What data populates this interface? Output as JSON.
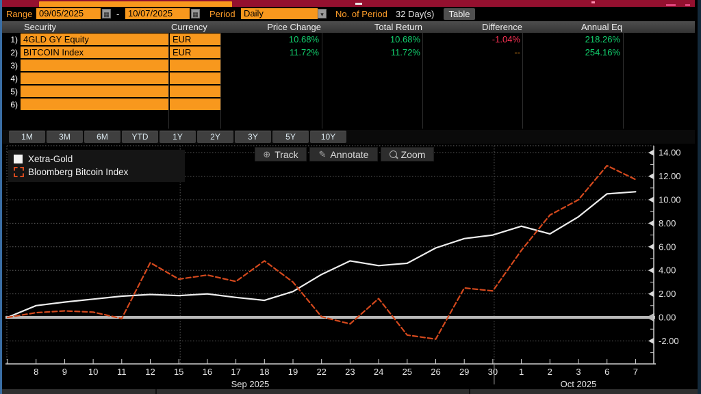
{
  "toolbar": {
    "range_label": "Range",
    "range_start": "09/05/2025",
    "range_end": "10/07/2025",
    "dash": "-",
    "period_label": "Period",
    "period_value": "Daily",
    "no_of_period_label": "No. of Period",
    "no_of_period_value": "32 Day(s)",
    "table_button": "Table"
  },
  "table": {
    "headers": [
      "Security",
      "Currency",
      "Price Change",
      "Total Return",
      "Difference",
      "Annual Eq"
    ],
    "rows": [
      {
        "num": "1)",
        "security": "4GLD GY Equity",
        "currency": "EUR",
        "price_change": "10.68%",
        "total_return": "10.68%",
        "difference": "-1.04%",
        "annual_eq": "218.26%"
      },
      {
        "num": "2)",
        "security": "BITCOIN Index",
        "currency": "EUR",
        "price_change": "11.72%",
        "total_return": "11.72%",
        "difference": "--",
        "annual_eq": "254.16%"
      },
      {
        "num": "3)",
        "security": "",
        "currency": ""
      },
      {
        "num": "4)",
        "security": "",
        "currency": ""
      },
      {
        "num": "5)",
        "security": "",
        "currency": ""
      },
      {
        "num": "6)",
        "security": "",
        "currency": ""
      }
    ]
  },
  "period_buttons": [
    "1M",
    "3M",
    "6M",
    "YTD",
    "1Y",
    "2Y",
    "3Y",
    "5Y",
    "10Y"
  ],
  "chart": {
    "buttons": [
      {
        "label": "Track",
        "icon": "crosshair-icon"
      },
      {
        "label": "Annotate",
        "icon": "pencil-icon"
      },
      {
        "label": "Zoom",
        "icon": "magnifier-icon"
      }
    ]
  },
  "chart_data": {
    "type": "line",
    "x_tick_labels": [
      "8",
      "9",
      "10",
      "11",
      "12",
      "15",
      "16",
      "17",
      "18",
      "19",
      "22",
      "23",
      "24",
      "25",
      "26",
      "29",
      "30",
      "1",
      "2",
      "3",
      "6",
      "7"
    ],
    "dates": [
      "09/05",
      "09/08",
      "09/09",
      "09/10",
      "09/11",
      "09/12",
      "09/15",
      "09/16",
      "09/17",
      "09/18",
      "09/19",
      "09/22",
      "09/23",
      "09/24",
      "09/25",
      "09/26",
      "09/29",
      "09/30",
      "10/01",
      "10/02",
      "10/03",
      "10/06",
      "10/07"
    ],
    "series": [
      {
        "name": "Xetra-Gold",
        "color": "#eeeeee",
        "style": "solid",
        "values": [
          0,
          1.0,
          1.3,
          1.55,
          1.8,
          1.95,
          1.85,
          2.0,
          1.7,
          1.45,
          2.2,
          3.65,
          4.8,
          4.4,
          4.6,
          5.9,
          6.7,
          7.0,
          7.75,
          7.1,
          8.55,
          10.5,
          10.68
        ]
      },
      {
        "name": "Bloomberg Bitcoin Index",
        "color": "#d5491d",
        "style": "dashed",
        "values": [
          0,
          0.4,
          0.55,
          0.45,
          -0.1,
          4.65,
          3.25,
          3.6,
          3.05,
          4.8,
          3.0,
          0.05,
          -0.55,
          1.6,
          -1.5,
          -1.85,
          2.5,
          2.25,
          5.7,
          8.7,
          10.0,
          12.9,
          11.72
        ]
      }
    ],
    "y_ticks": [
      14,
      12,
      10,
      8,
      6,
      4,
      2,
      0,
      -2
    ],
    "ylim": [
      -4,
      14.6
    ],
    "months": [
      {
        "label": "Sep 2025",
        "start_index": 0,
        "end_index": 17
      },
      {
        "label": "Oct 2025",
        "start_index": 18,
        "end_index": 22
      }
    ],
    "month_divider_index": 17,
    "v_gridline_indices": [
      6,
      17
    ],
    "zero_line": true,
    "grid": "dotted-horizontal",
    "legend_position": "top-left",
    "y_axis_side": "right"
  },
  "colors": {
    "accent_orange": "#f8981d",
    "label_amber": "#ff9e2a",
    "positive_green": "#12d16e",
    "negative_red": "#ff3355",
    "line_white": "#eeeeee",
    "line_red": "#d5491d",
    "top_bar_red": "#94102f"
  }
}
